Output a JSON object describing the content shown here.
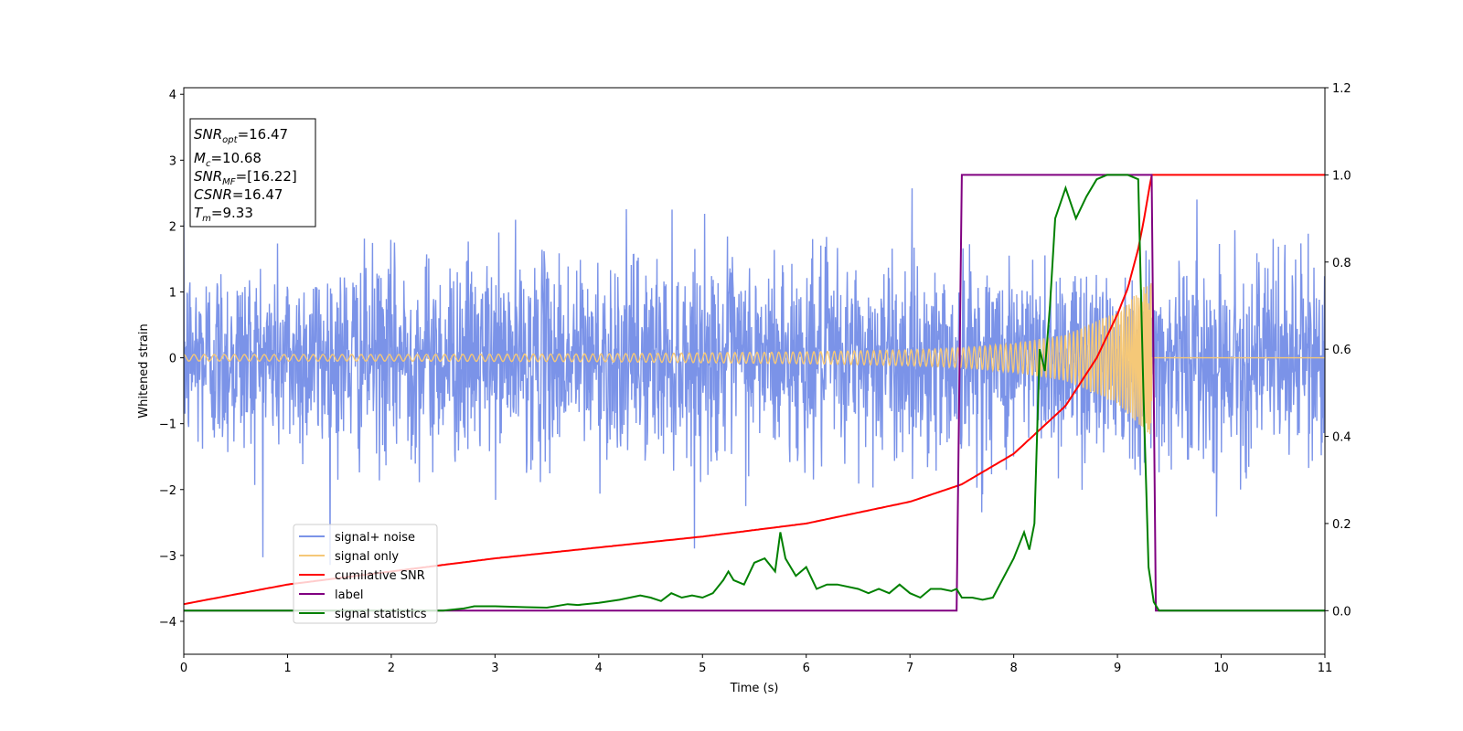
{
  "chart_data": {
    "type": "line",
    "xlabel": "Time (s)",
    "ylabel": "Whitened strain",
    "xlim": [
      0,
      11
    ],
    "ylim": [
      -4.5,
      4.1
    ],
    "y2lim": [
      -0.1,
      1.2
    ],
    "x_ticks": [
      "0",
      "1",
      "2",
      "3",
      "4",
      "5",
      "6",
      "7",
      "8",
      "9",
      "10",
      "11"
    ],
    "y_ticks": [
      "−4",
      "−3",
      "−2",
      "−1",
      "0",
      "1",
      "2",
      "3",
      "4"
    ],
    "y2_ticks": [
      "0.0",
      "0.2",
      "0.4",
      "0.6",
      "0.8",
      "1.0",
      "1.2"
    ],
    "annotation": {
      "snr_opt": {
        "main": "SNR",
        "sub": "opt",
        "value": "=16.47"
      },
      "mc": {
        "main": "M",
        "sub": "c",
        "value": "=10.68"
      },
      "snr_mf": {
        "main": "SNR",
        "sub": "MF",
        "value": "=[16.22]"
      },
      "csnr": {
        "main": "CSNR",
        "value": "=16.47"
      },
      "tm": {
        "main": "T",
        "sub": "m",
        "value": "=9.33"
      }
    },
    "legend_position": "lower-left",
    "series": [
      {
        "name": "signal+ noise",
        "color": "#7b93e8",
        "axis": "left",
        "noise_std": 0.75,
        "peak_amplitude": 3.7
      },
      {
        "name": "signal only",
        "color": "#f5c878",
        "axis": "left",
        "envelope": {
          "x": [
            0,
            2,
            4,
            6,
            7,
            7.5,
            8,
            8.5,
            9,
            9.2,
            9.33,
            11
          ],
          "amp": [
            0.05,
            0.05,
            0.06,
            0.09,
            0.12,
            0.15,
            0.22,
            0.35,
            0.7,
            1.0,
            1.2,
            0
          ]
        }
      },
      {
        "name": "cumilative SNR",
        "color": "#ff0000",
        "axis": "right",
        "x": [
          0,
          1,
          2,
          3,
          4,
          5,
          6,
          7,
          7.5,
          8,
          8.5,
          8.8,
          9.0,
          9.1,
          9.2,
          9.25,
          9.3,
          9.33,
          11
        ],
        "y": [
          0.015,
          0.06,
          0.09,
          0.12,
          0.145,
          0.17,
          0.2,
          0.25,
          0.29,
          0.36,
          0.47,
          0.58,
          0.68,
          0.74,
          0.83,
          0.89,
          0.96,
          1.0,
          1.0
        ]
      },
      {
        "name": "label",
        "color": "#800080",
        "axis": "right",
        "x": [
          0,
          7.45,
          7.5,
          9.33,
          9.37,
          11
        ],
        "y": [
          0,
          0,
          1,
          1,
          0,
          0
        ]
      },
      {
        "name": "signal statistics",
        "color": "#008000",
        "axis": "right",
        "x": [
          0,
          2.5,
          2.7,
          2.8,
          3.0,
          3.3,
          3.5,
          3.7,
          3.8,
          4.0,
          4.2,
          4.4,
          4.5,
          4.6,
          4.7,
          4.8,
          4.9,
          5.0,
          5.1,
          5.2,
          5.25,
          5.3,
          5.4,
          5.5,
          5.6,
          5.7,
          5.75,
          5.8,
          5.9,
          6.0,
          6.1,
          6.2,
          6.3,
          6.5,
          6.6,
          6.7,
          6.8,
          6.9,
          7.0,
          7.1,
          7.2,
          7.3,
          7.4,
          7.45,
          7.5,
          7.6,
          7.7,
          7.8,
          8.0,
          8.1,
          8.15,
          8.2,
          8.25,
          8.3,
          8.35,
          8.4,
          8.5,
          8.6,
          8.7,
          8.8,
          8.9,
          9.0,
          9.1,
          9.2,
          9.25,
          9.3,
          9.35,
          9.4,
          11
        ],
        "y": [
          0.0,
          0.0,
          0.005,
          0.01,
          0.01,
          0.008,
          0.007,
          0.015,
          0.013,
          0.018,
          0.025,
          0.035,
          0.03,
          0.022,
          0.04,
          0.03,
          0.035,
          0.03,
          0.04,
          0.07,
          0.09,
          0.07,
          0.06,
          0.11,
          0.12,
          0.09,
          0.18,
          0.12,
          0.08,
          0.1,
          0.05,
          0.06,
          0.06,
          0.05,
          0.04,
          0.05,
          0.04,
          0.06,
          0.04,
          0.03,
          0.05,
          0.05,
          0.045,
          0.05,
          0.03,
          0.03,
          0.025,
          0.03,
          0.12,
          0.18,
          0.14,
          0.2,
          0.6,
          0.55,
          0.7,
          0.9,
          0.97,
          0.9,
          0.95,
          0.99,
          1.0,
          1.0,
          1.0,
          0.99,
          0.5,
          0.1,
          0.02,
          0.0,
          0.0
        ]
      }
    ]
  }
}
